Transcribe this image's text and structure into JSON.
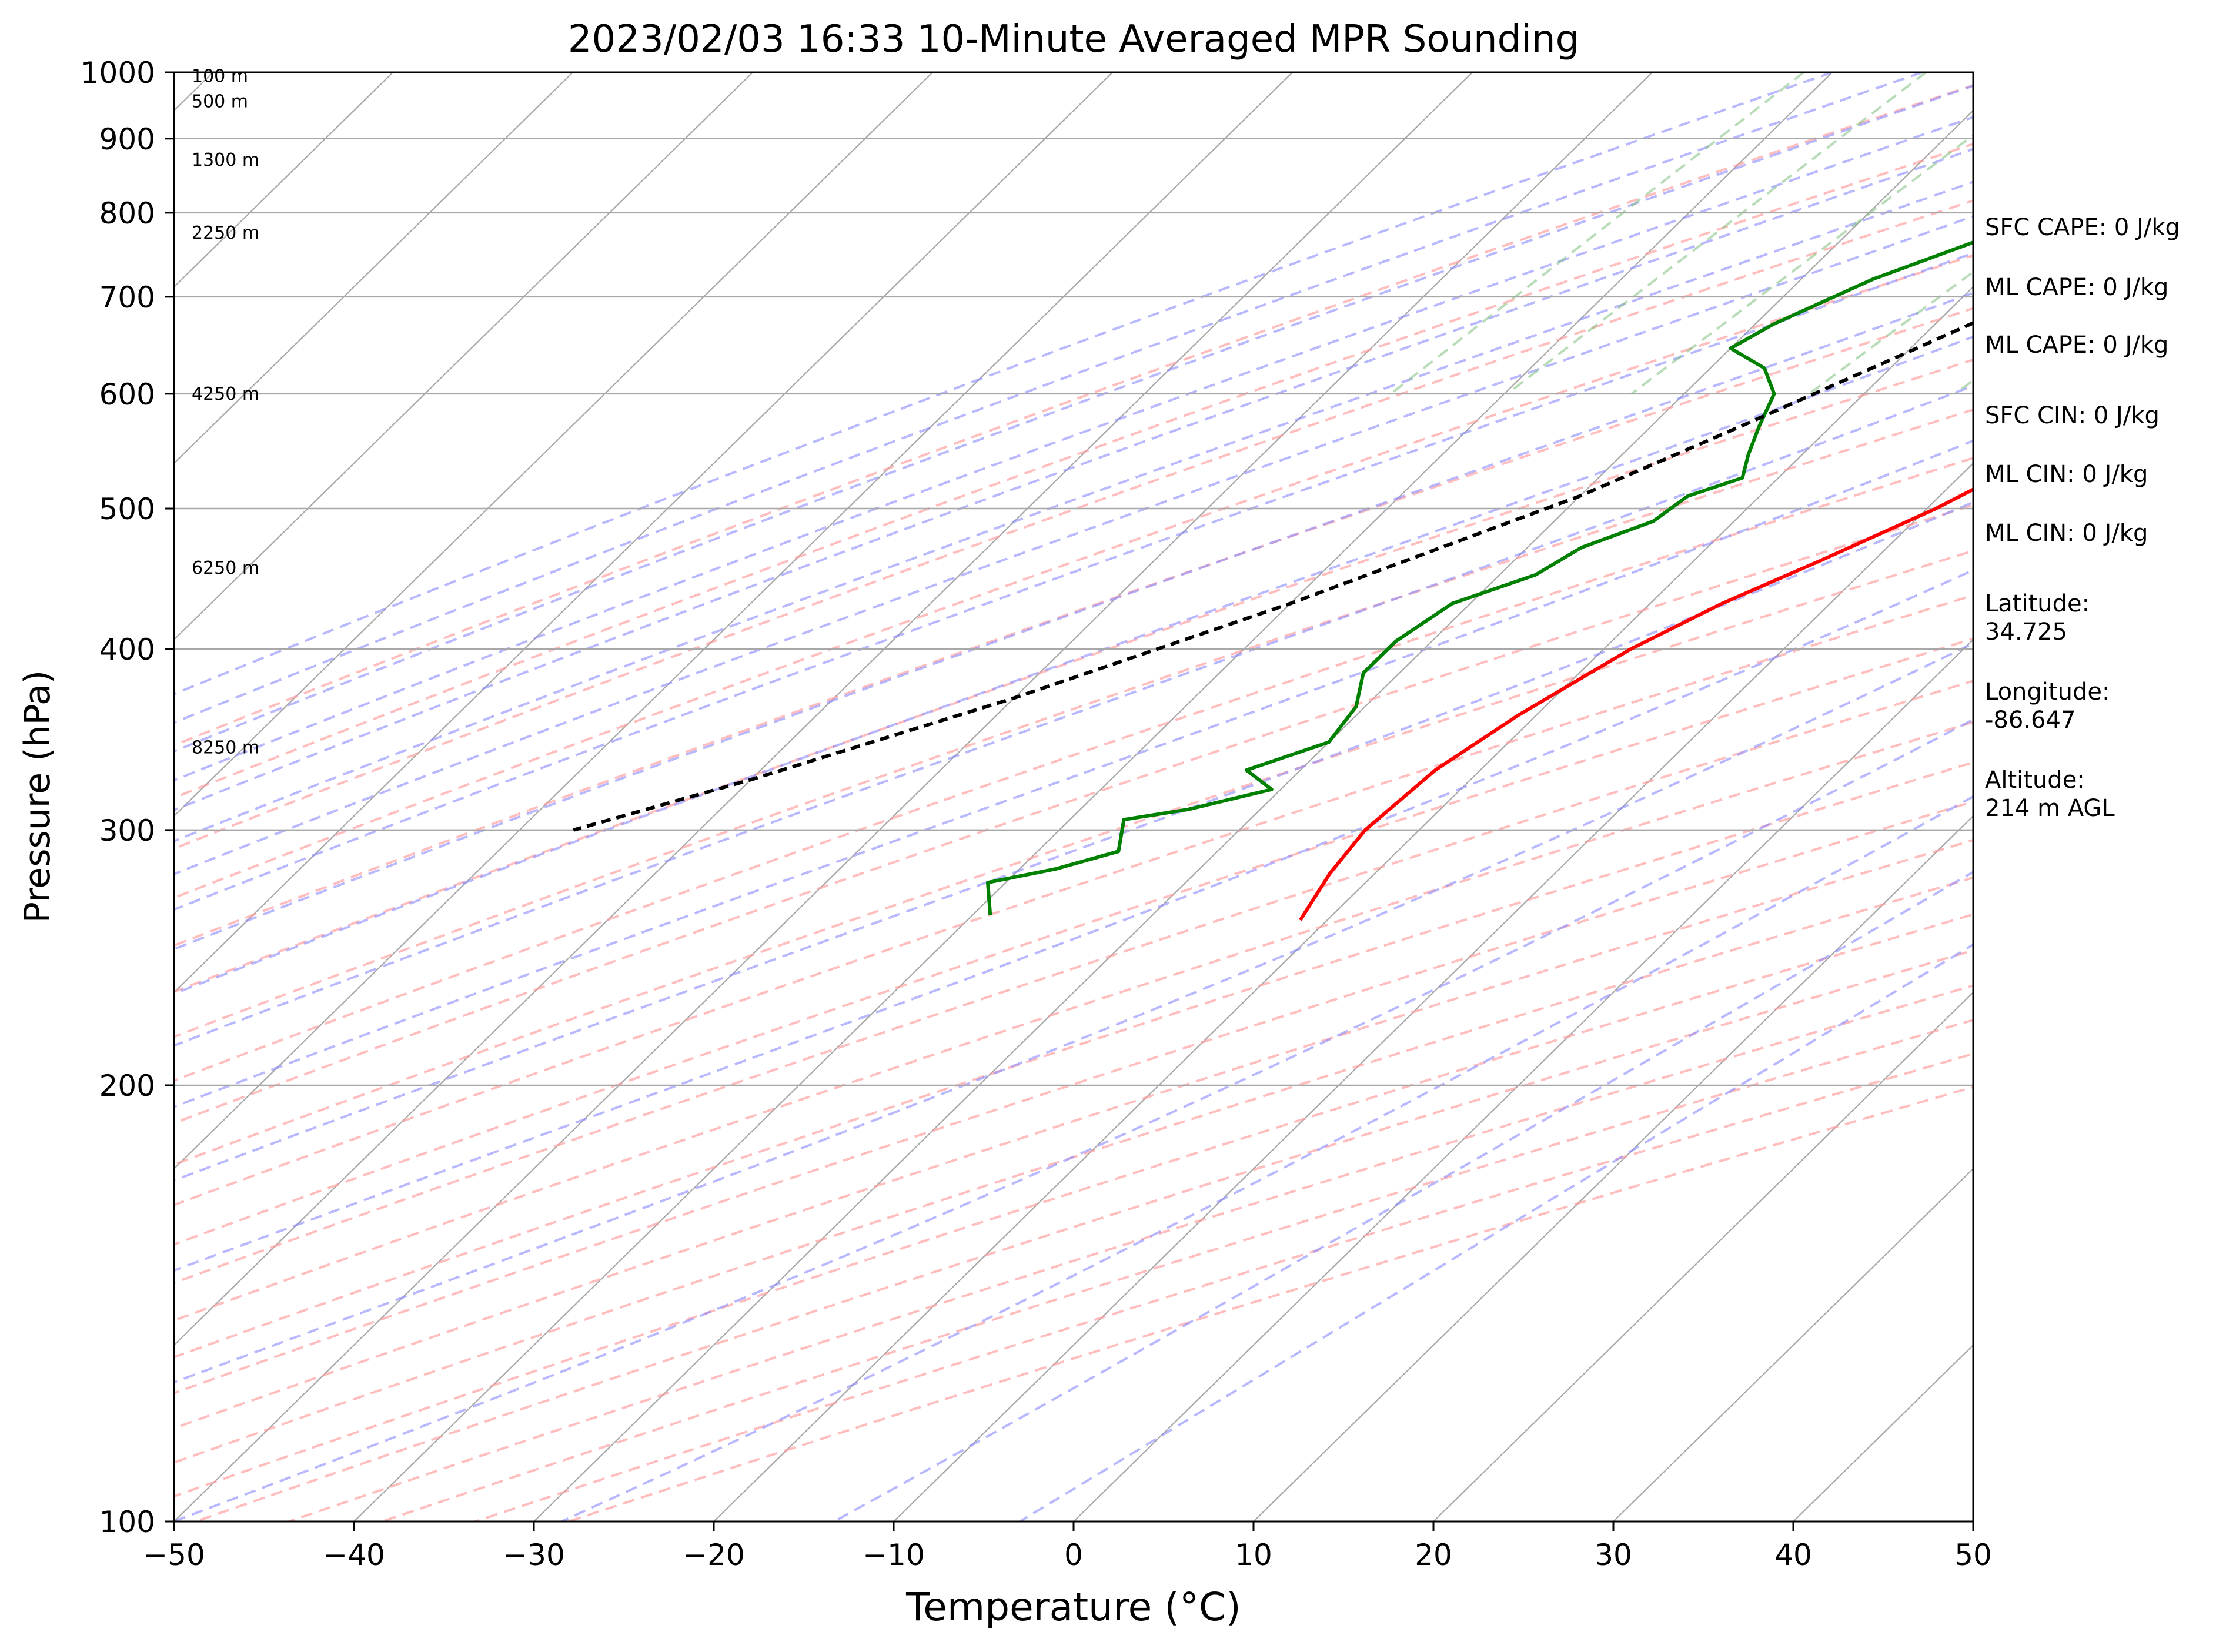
{
  "chart_data": {
    "type": "skew-t",
    "title": "2023/02/03 16:33 10-Minute Averaged MPR Sounding",
    "xlabel": "Temperature (°C)",
    "ylabel": "Pressure (hPa)",
    "xlim": [
      -50,
      50
    ],
    "ylim": [
      1000,
      100
    ],
    "y_scale": "log",
    "x_ticks": [
      -50,
      -40,
      -30,
      -20,
      -10,
      0,
      10,
      20,
      30,
      40,
      50
    ],
    "x_tick_labels": [
      "−50",
      "−40",
      "−30",
      "−20",
      "−10",
      "0",
      "10",
      "20",
      "30",
      "40",
      "50"
    ],
    "y_ticks": [
      100,
      200,
      300,
      400,
      500,
      600,
      700,
      800,
      900,
      1000
    ],
    "y_tick_labels": [
      "100",
      "200",
      "300",
      "400",
      "500",
      "600",
      "700",
      "800",
      "900",
      "1000"
    ],
    "grid": true,
    "background_line_colors": {
      "skewed_isotherms": "#a8a8a8",
      "dry_adiabats": "#ff9a9a",
      "moist_adiabats": "#8888ff",
      "mixing_ratio": "#7dbf7d"
    },
    "series": [
      {
        "color": "#ff0000",
        "style": "solid",
        "points": [
          [
            1,
            1000
          ],
          [
            -0.5,
            960
          ],
          [
            -2.5,
            925
          ],
          [
            -2,
            880
          ],
          [
            -1.5,
            850
          ],
          [
            -0.8,
            820
          ],
          [
            0,
            790
          ],
          [
            0,
            750
          ],
          [
            -0.5,
            700
          ],
          [
            -1.5,
            660
          ],
          [
            -3,
            620
          ],
          [
            -5,
            580
          ],
          [
            -7,
            540
          ],
          [
            -9.5,
            500
          ],
          [
            -13,
            460
          ],
          [
            -16,
            430
          ],
          [
            -18.5,
            400
          ],
          [
            -21,
            360
          ],
          [
            -22.5,
            330
          ],
          [
            -23,
            300
          ],
          [
            -22.5,
            280
          ],
          [
            -21.5,
            260
          ]
        ]
      },
      {
        "color": "#008000",
        "style": "solid",
        "points": [
          [
            -9.5,
            1000
          ],
          [
            -10.8,
            980
          ],
          [
            -10.8,
            965
          ],
          [
            -10.5,
            950
          ],
          [
            -10.5,
            925
          ],
          [
            -13,
            910
          ],
          [
            -14.5,
            880
          ],
          [
            -13.5,
            860
          ],
          [
            -14.5,
            840
          ],
          [
            -15,
            830
          ],
          [
            -16,
            810
          ],
          [
            -22,
            770
          ],
          [
            -26,
            720
          ],
          [
            -29,
            670
          ],
          [
            -30,
            645
          ],
          [
            -27,
            625
          ],
          [
            -25,
            600
          ],
          [
            -24,
            570
          ],
          [
            -23,
            545
          ],
          [
            -22,
            525
          ],
          [
            -24,
            510
          ],
          [
            -24.5,
            490
          ],
          [
            -27,
            470
          ],
          [
            -28,
            450
          ],
          [
            -31,
            430
          ],
          [
            -32,
            405
          ],
          [
            -32,
            385
          ],
          [
            -30.5,
            365
          ],
          [
            -30,
            345
          ],
          [
            -33,
            330
          ],
          [
            -30.5,
            320
          ],
          [
            -34,
            310
          ],
          [
            -37,
            305
          ],
          [
            -35.5,
            290
          ],
          [
            -38,
            282
          ],
          [
            -41,
            276
          ],
          [
            -39,
            262
          ]
        ]
      },
      {
        "color": "#000000",
        "style": "dashed",
        "points": [
          [
            1.6,
            1000
          ],
          [
            0.2,
            960
          ],
          [
            -2,
            925
          ],
          [
            -4,
            900
          ],
          [
            -5.5,
            870
          ],
          [
            -8,
            830
          ],
          [
            -10.5,
            790
          ],
          [
            -15,
            720
          ],
          [
            -20,
            640
          ],
          [
            -25,
            570
          ],
          [
            -30,
            510
          ],
          [
            -40,
            430
          ],
          [
            -50,
            370
          ],
          [
            -60,
            325
          ],
          [
            -67,
            300
          ]
        ]
      }
    ],
    "height_labels": [
      {
        "text": "100 m",
        "pressure": 994
      },
      {
        "text": "500 m",
        "pressure": 955
      },
      {
        "text": "1300 m",
        "pressure": 870
      },
      {
        "text": "2250 m",
        "pressure": 775
      },
      {
        "text": "4250 m",
        "pressure": 600
      },
      {
        "text": "6250 m",
        "pressure": 455
      },
      {
        "text": "8250 m",
        "pressure": 342
      }
    ]
  },
  "side_info": [
    {
      "lines": [
        "SFC CAPE: 0 J/kg"
      ]
    },
    {
      "lines": [
        "ML CAPE: 0 J/kg"
      ]
    },
    {
      "lines": [
        "ML CAPE: 0 J/kg"
      ]
    },
    {
      "lines": [
        "SFC CIN: 0 J/kg"
      ]
    },
    {
      "lines": [
        "ML CIN: 0 J/kg"
      ]
    },
    {
      "lines": [
        "ML CIN: 0 J/kg"
      ]
    },
    {
      "lines": [
        "Latitude:",
        "34.725"
      ]
    },
    {
      "lines": [
        "Longitude:",
        "-86.647"
      ]
    },
    {
      "lines": [
        "Altitude:",
        "214 m AGL"
      ]
    }
  ]
}
